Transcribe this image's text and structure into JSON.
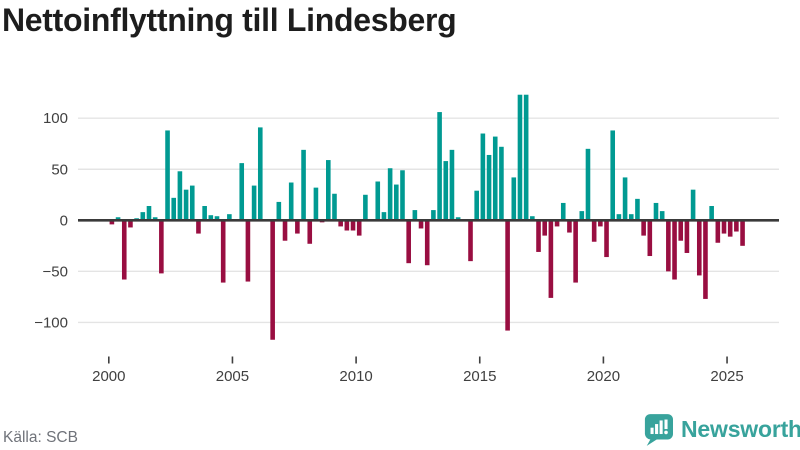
{
  "title": "Nettoinflyttning till Lindesberg",
  "source": "Källa: SCB",
  "branding": {
    "logo_text": "Newsworthy",
    "logo_icon": "speech-bubble-with-bar-chart",
    "logo_color": "#38a39c"
  },
  "colors": {
    "positive_bar": "#009a92",
    "negative_bar": "#990e41",
    "zero_line": "#3a3a3a",
    "gridline": "#e4e4e4",
    "axis_text": "#404040",
    "title_text": "#1d1d1d",
    "source_text": "#70737a",
    "background": "#ffffff"
  },
  "chart_data": {
    "type": "bar",
    "title": "Nettoinflyttning till Lindesberg",
    "ylabel": "",
    "xlabel": "",
    "frequency": "quarterly",
    "start_period": "2000 Q1",
    "end_period": "2025 Q3",
    "legend": "none",
    "grid": "horizontal",
    "ylim": [
      -130,
      135
    ],
    "y_ticks": [
      100,
      50,
      0,
      -50,
      -100
    ],
    "y_tick_labels": [
      "100",
      "50",
      "0",
      "−50",
      "−100"
    ],
    "x_tick_years": [
      2000,
      2005,
      2010,
      2015,
      2020,
      2025
    ],
    "x_tick_labels": [
      "2000",
      "2005",
      "2010",
      "2015",
      "2020",
      "2025"
    ],
    "values": [
      -4,
      3,
      -58,
      -7,
      2,
      8,
      14,
      3,
      -52,
      88,
      22,
      48,
      30,
      34,
      -13,
      14,
      5,
      4,
      -61,
      6,
      0,
      56,
      -60,
      34,
      91,
      0,
      -117,
      18,
      -20,
      37,
      -13,
      69,
      -23,
      32,
      -2,
      59,
      26,
      -6,
      -10,
      -10,
      -15,
      25,
      0,
      38,
      8,
      51,
      35,
      49,
      -42,
      10,
      -8,
      -44,
      10,
      106,
      58,
      69,
      3,
      0,
      -40,
      29,
      85,
      64,
      82,
      72,
      -108,
      42,
      123,
      123,
      4,
      -31,
      -15,
      -76,
      -6,
      17,
      -12,
      -61,
      9,
      70,
      -21,
      -6,
      -36,
      88,
      6,
      42,
      6,
      21,
      -15,
      -35,
      17,
      9,
      -50,
      -58,
      -20,
      -32,
      30,
      -54,
      -77,
      14,
      -22,
      -13,
      -16,
      -11,
      -25
    ]
  }
}
